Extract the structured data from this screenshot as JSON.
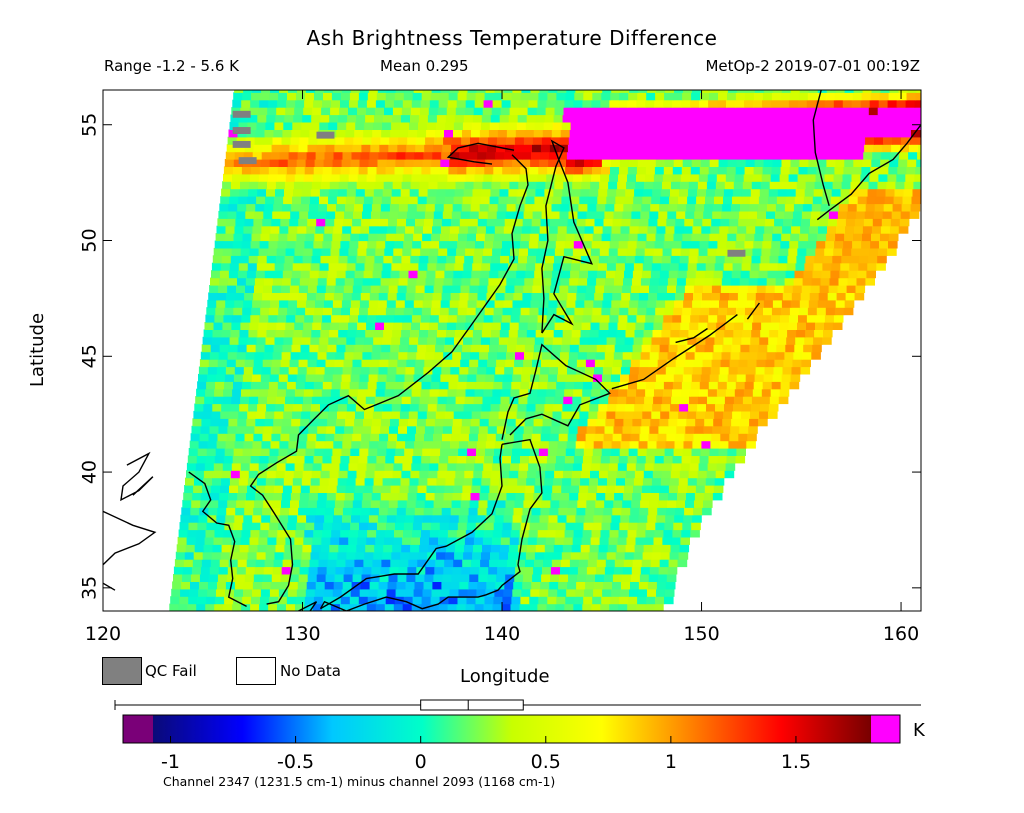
{
  "header": {
    "title": "Ash Brightness Temperature Difference",
    "range": "Range -1.2 - 5.6 K",
    "mean": "Mean 0.295",
    "satellite_time": "MetOp-2 2019-07-01 00:19Z"
  },
  "legend": {
    "qc_fail_label": "QC Fail",
    "no_data_label": "No Data",
    "qc_fail_color": "#808080",
    "no_data_color": "#ffffff"
  },
  "colorbar": {
    "unit": "K",
    "ticks": [
      "-1",
      "-0.5",
      "0",
      "0.5",
      "1",
      "1.5"
    ],
    "tick_values": [
      -1,
      -0.5,
      0,
      0.5,
      1,
      1.5
    ],
    "min": -1.2,
    "max": 1.9,
    "underflow_color": "#7a0078",
    "overflow_color": "#ff00ff",
    "stops": [
      "#0a0a78",
      "#0000ff",
      "#00c8ff",
      "#00ffc8",
      "#c8ff00",
      "#ffff00",
      "#ff8000",
      "#ff0000",
      "#780000"
    ],
    "footnote": "Channel 2347 (1231.5 cm-1) minus channel 2093 (1168 cm-1)",
    "box_stats": {
      "q1": 0.0,
      "median": 0.19,
      "q3": 0.41
    }
  },
  "chart_data": {
    "type": "heatmap",
    "title": "Ash Brightness Temperature Difference",
    "xlabel": "Longitude",
    "ylabel": "Latitude",
    "xlim": [
      120,
      161
    ],
    "ylim": [
      34,
      56.5
    ],
    "x_ticks": [
      120,
      130,
      140,
      150,
      160
    ],
    "y_ticks": [
      35,
      40,
      45,
      50,
      55
    ],
    "x_tick_labels": [
      "120",
      "130",
      "140",
      "150",
      "160"
    ],
    "y_tick_labels": [
      "35",
      "40",
      "45",
      "50",
      "55"
    ],
    "colorbar_range": [
      -1.2,
      1.9
    ],
    "features": [
      {
        "name": "ash plume",
        "lon_range": [
          126,
          161
        ],
        "lat_range": [
          52,
          55.5
        ],
        "value_range": [
          1.2,
          2.5
        ]
      },
      {
        "name": "elevated band east",
        "lon_range": [
          143,
          156
        ],
        "lat_range": [
          42,
          47
        ],
        "value_range": [
          0.8,
          1.3
        ]
      },
      {
        "name": "low values south",
        "lon_range": [
          131,
          140
        ],
        "lat_range": [
          34,
          38
        ],
        "value_range": [
          -0.8,
          -0.3
        ]
      }
    ]
  }
}
